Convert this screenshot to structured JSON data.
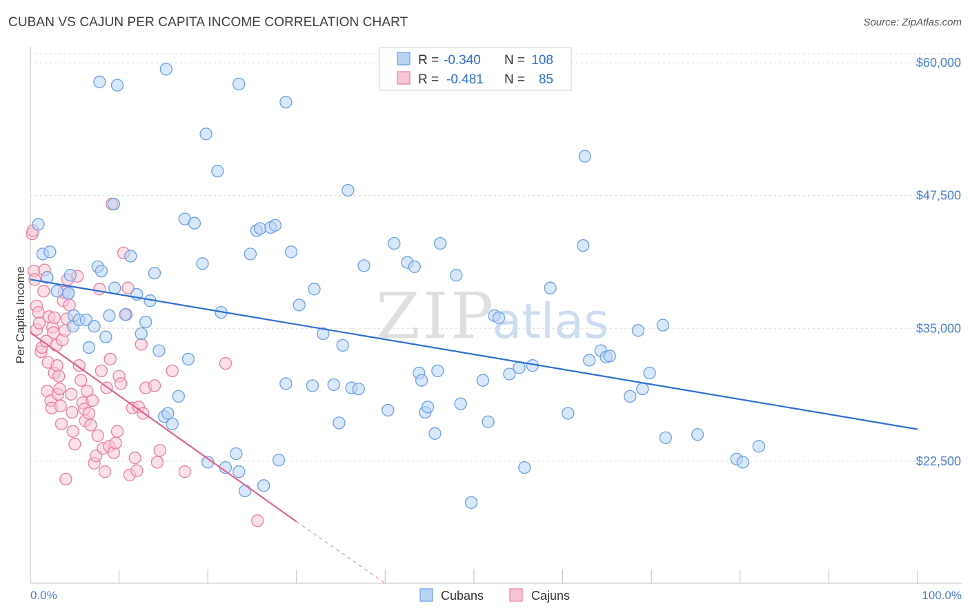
{
  "title": "CUBAN VS CAJUN PER CAPITA INCOME CORRELATION CHART",
  "source": "Source: ZipAtlas.com",
  "watermark": {
    "zip": "ZIP",
    "atlas": "atlas"
  },
  "colors": {
    "cuban": "#6a9fe3",
    "cuban_fill": "#b9d3f5",
    "cuban_line": "#2d6fd2",
    "cajun": "#ea7ca0",
    "cajun_fill": "#f7c6d6",
    "cajun_line": "#e0608c",
    "axis_label": "#4a7fd0"
  },
  "legend": {
    "rows": [
      {
        "r_label": "R =",
        "r_value": "-0.340",
        "n_label": "N =",
        "n_value": "108"
      },
      {
        "r_label": "R =",
        "r_value": "-0.481",
        "n_label": "N =",
        "n_value": "85"
      }
    ]
  },
  "chart_data": {
    "type": "scatter",
    "title": "CUBAN VS CAJUN PER CAPITA INCOME CORRELATION CHART",
    "xlabel": "",
    "ylabel": "Per Capita Income",
    "xlim": [
      0,
      100
    ],
    "ylim": [
      11000,
      61500
    ],
    "x_tick_labels": [
      "0.0%",
      "100.0%"
    ],
    "y_ticks": [
      {
        "value": 22500,
        "label": "$22,500"
      },
      {
        "value": 35000,
        "label": "$35,000"
      },
      {
        "value": 47500,
        "label": "$47,500"
      },
      {
        "value": 60000,
        "label": "$60,000"
      }
    ],
    "grid": true,
    "legend_position": "bottom-center",
    "series": [
      {
        "name": "Cubans",
        "r": -0.34,
        "n": 108,
        "trend": {
          "x0": 0,
          "y0": 39600,
          "x1": 100,
          "y1": 25500
        },
        "points": [
          [
            0.9,
            44800
          ],
          [
            1.4,
            42000
          ],
          [
            2.2,
            42200
          ],
          [
            1.9,
            39800
          ],
          [
            3.0,
            38500
          ],
          [
            4.3,
            38300
          ],
          [
            4.5,
            40000
          ],
          [
            4.8,
            35200
          ],
          [
            4.9,
            36200
          ],
          [
            5.5,
            35800
          ],
          [
            6.3,
            35800
          ],
          [
            6.6,
            33200
          ],
          [
            7.2,
            35200
          ],
          [
            7.6,
            40800
          ],
          [
            8.0,
            40400
          ],
          [
            8.5,
            34200
          ],
          [
            8.9,
            36200
          ],
          [
            9.5,
            38800
          ],
          [
            9.4,
            46700
          ],
          [
            10.7,
            36300
          ],
          [
            11.3,
            41800
          ],
          [
            12.0,
            38200
          ],
          [
            12.5,
            34500
          ],
          [
            13.0,
            35600
          ],
          [
            13.5,
            37600
          ],
          [
            14.0,
            40200
          ],
          [
            14.5,
            32900
          ],
          [
            15.1,
            26700
          ],
          [
            15.5,
            27000
          ],
          [
            16.0,
            26000
          ],
          [
            16.7,
            28600
          ],
          [
            17.4,
            45300
          ],
          [
            17.8,
            32100
          ],
          [
            18.5,
            44900
          ],
          [
            19.4,
            41100
          ],
          [
            20.0,
            22400
          ],
          [
            21.5,
            36500
          ],
          [
            22.0,
            21900
          ],
          [
            23.2,
            23200
          ],
          [
            23.5,
            21500
          ],
          [
            24.2,
            19700
          ],
          [
            25.5,
            44200
          ],
          [
            25.9,
            44400
          ],
          [
            26.3,
            20200
          ],
          [
            27.1,
            44500
          ],
          [
            27.6,
            44700
          ],
          [
            28.0,
            22600
          ],
          [
            28.8,
            29800
          ],
          [
            29.4,
            42200
          ],
          [
            30.3,
            37200
          ],
          [
            32.0,
            38700
          ],
          [
            31.8,
            29600
          ],
          [
            33.0,
            34500
          ],
          [
            34.2,
            29700
          ],
          [
            34.8,
            26100
          ],
          [
            35.2,
            33400
          ],
          [
            36.2,
            29400
          ],
          [
            37.0,
            29300
          ],
          [
            37.6,
            40900
          ],
          [
            40.3,
            27300
          ],
          [
            42.5,
            41200
          ],
          [
            43.3,
            40800
          ],
          [
            43.8,
            30800
          ],
          [
            44.1,
            30100
          ],
          [
            44.5,
            27100
          ],
          [
            44.8,
            27600
          ],
          [
            45.6,
            25100
          ],
          [
            45.9,
            31000
          ],
          [
            46.2,
            43000
          ],
          [
            48.5,
            27900
          ],
          [
            49.7,
            18600
          ],
          [
            51.0,
            30100
          ],
          [
            51.6,
            26200
          ],
          [
            52.3,
            36200
          ],
          [
            52.8,
            36000
          ],
          [
            54.0,
            30700
          ],
          [
            55.1,
            31300
          ],
          [
            55.7,
            21900
          ],
          [
            56.6,
            31500
          ],
          [
            58.6,
            38800
          ],
          [
            60.6,
            27000
          ],
          [
            62.3,
            42800
          ],
          [
            62.5,
            51200
          ],
          [
            63.0,
            32000
          ],
          [
            64.3,
            32900
          ],
          [
            64.9,
            32300
          ],
          [
            65.3,
            32400
          ],
          [
            67.6,
            28600
          ],
          [
            68.5,
            34800
          ],
          [
            69.0,
            29300
          ],
          [
            69.8,
            30800
          ],
          [
            71.3,
            35300
          ],
          [
            71.6,
            24700
          ],
          [
            75.2,
            25000
          ],
          [
            79.6,
            22700
          ],
          [
            80.3,
            22400
          ],
          [
            82.1,
            23900
          ],
          [
            4.3,
            38300
          ],
          [
            7.8,
            58200
          ],
          [
            9.8,
            57900
          ],
          [
            15.3,
            59400
          ],
          [
            19.8,
            53300
          ],
          [
            21.1,
            49800
          ],
          [
            23.5,
            58000
          ],
          [
            28.8,
            56300
          ],
          [
            35.8,
            48000
          ],
          [
            41.0,
            43000
          ],
          [
            48.0,
            40000
          ],
          [
            24.8,
            42000
          ]
        ]
      },
      {
        "name": "Cajuns",
        "r": -0.481,
        "n": 85,
        "trend": {
          "x0": 0,
          "y0": 34600,
          "x1": 30,
          "y1": 16800,
          "dash_x1": 40,
          "dash_y1": 10800
        },
        "points": [
          [
            0.2,
            43900
          ],
          [
            0.3,
            44200
          ],
          [
            0.4,
            40400
          ],
          [
            0.5,
            39600
          ],
          [
            0.7,
            37100
          ],
          [
            0.7,
            34900
          ],
          [
            0.9,
            36500
          ],
          [
            1.0,
            35500
          ],
          [
            1.2,
            32800
          ],
          [
            1.3,
            33200
          ],
          [
            1.5,
            38500
          ],
          [
            1.8,
            33800
          ],
          [
            1.9,
            29100
          ],
          [
            2.0,
            31800
          ],
          [
            2.1,
            36100
          ],
          [
            2.3,
            28200
          ],
          [
            2.4,
            27500
          ],
          [
            2.5,
            35100
          ],
          [
            2.6,
            34600
          ],
          [
            2.7,
            30800
          ],
          [
            2.9,
            33400
          ],
          [
            3.0,
            31500
          ],
          [
            3.1,
            28800
          ],
          [
            3.2,
            30500
          ],
          [
            3.3,
            29300
          ],
          [
            3.4,
            27700
          ],
          [
            3.5,
            26000
          ],
          [
            3.6,
            33900
          ],
          [
            3.7,
            37600
          ],
          [
            3.8,
            38400
          ],
          [
            3.9,
            34800
          ],
          [
            4.1,
            35900
          ],
          [
            4.2,
            39600
          ],
          [
            4.4,
            37200
          ],
          [
            4.6,
            28800
          ],
          [
            4.7,
            27100
          ],
          [
            4.8,
            25300
          ],
          [
            5.0,
            24100
          ],
          [
            5.3,
            39900
          ],
          [
            5.5,
            31500
          ],
          [
            5.7,
            30100
          ],
          [
            5.9,
            28000
          ],
          [
            6.1,
            27400
          ],
          [
            6.2,
            26300
          ],
          [
            6.4,
            29100
          ],
          [
            6.6,
            27000
          ],
          [
            6.8,
            25900
          ],
          [
            7.0,
            28200
          ],
          [
            7.2,
            22300
          ],
          [
            7.4,
            23000
          ],
          [
            7.6,
            24900
          ],
          [
            7.8,
            38700
          ],
          [
            8.0,
            31000
          ],
          [
            8.2,
            23700
          ],
          [
            8.4,
            21500
          ],
          [
            8.6,
            29400
          ],
          [
            8.9,
            23900
          ],
          [
            9.0,
            32100
          ],
          [
            9.2,
            46700
          ],
          [
            9.4,
            23300
          ],
          [
            9.6,
            24200
          ],
          [
            9.8,
            25300
          ],
          [
            10.0,
            30500
          ],
          [
            10.2,
            29800
          ],
          [
            10.5,
            42100
          ],
          [
            10.8,
            36300
          ],
          [
            11.0,
            38800
          ],
          [
            11.2,
            21200
          ],
          [
            11.5,
            27500
          ],
          [
            11.8,
            22800
          ],
          [
            12.0,
            21600
          ],
          [
            12.2,
            27600
          ],
          [
            12.5,
            33500
          ],
          [
            12.7,
            27000
          ],
          [
            13.0,
            29400
          ],
          [
            14.0,
            29600
          ],
          [
            14.3,
            22400
          ],
          [
            14.6,
            23500
          ],
          [
            16.0,
            31000
          ],
          [
            17.4,
            21500
          ],
          [
            22.0,
            31700
          ],
          [
            25.6,
            16900
          ],
          [
            4.0,
            20800
          ],
          [
            2.7,
            36000
          ],
          [
            1.6,
            40500
          ]
        ]
      }
    ]
  }
}
